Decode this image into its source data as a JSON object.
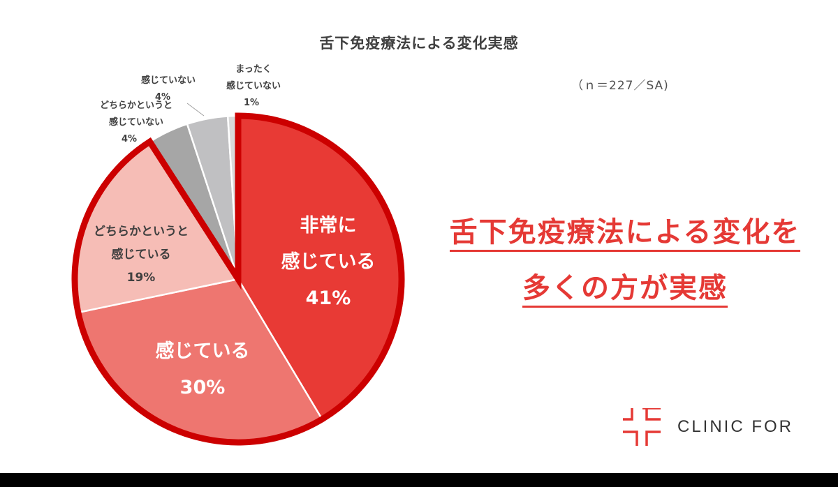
{
  "chart_data": {
    "type": "pie",
    "title": "舌下免疫療法による変化実感",
    "note": "（ｎ＝227／SA)",
    "start_angle_deg": 0,
    "direction": "clockwise",
    "categories": [
      "非常に感じている",
      "感じている",
      "どちらかというと感じている",
      "どちらかというと感じていない",
      "感じていない",
      "まったく感じていない"
    ],
    "values": [
      41,
      30,
      19,
      4,
      4,
      1
    ],
    "unit": "%",
    "colors": [
      "#e83a35",
      "#ee7670",
      "#f6bdb6",
      "#a6a6a6",
      "#c0c0c2",
      "#d9d9d9"
    ],
    "highlight": {
      "slices": [
        0,
        1,
        2
      ],
      "outline_color": "#cc0000"
    },
    "legend": "none"
  },
  "header": {
    "title": "舌下免疫療法による変化実感",
    "note": "（ｎ＝227／SA)"
  },
  "labels": {
    "slice0": {
      "line1": "非常に",
      "line2": "感じている",
      "pct": "41%"
    },
    "slice1": {
      "line1": "感じている",
      "pct": "30%"
    },
    "slice2": {
      "line1": "どちらかというと",
      "line2": "感じている",
      "pct": "19%"
    },
    "slice3": {
      "line1": "どちらかというと",
      "line2": "感じていない",
      "pct": "4%"
    },
    "slice4": {
      "line1": "感じていない",
      "pct": "4%"
    },
    "slice5": {
      "line1": "まったく",
      "line2": "感じていない",
      "pct": "1%"
    }
  },
  "headline": {
    "line1": "舌下免疫療法による変化を",
    "line2": "多くの方が実感"
  },
  "logo": {
    "text": "CLINIC FOR",
    "color": "#e53935"
  }
}
